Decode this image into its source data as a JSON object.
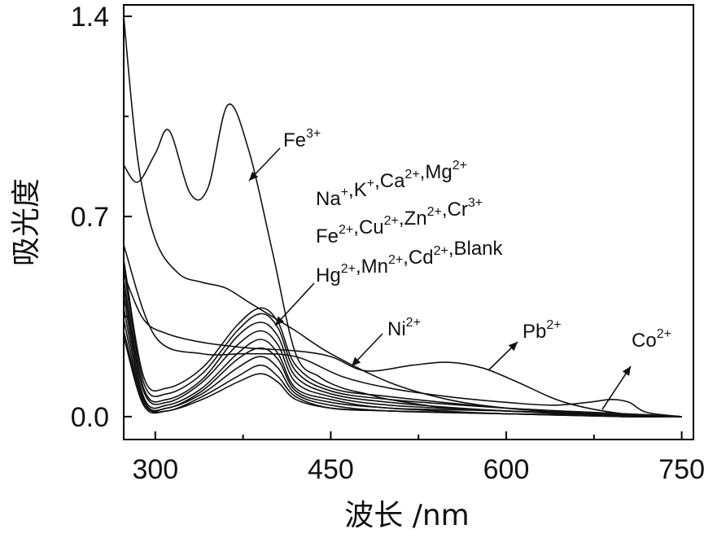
{
  "chart_data": {
    "type": "line",
    "xlabel": "波长 /nm",
    "ylabel": "吸光度",
    "xlim": [
      273,
      760
    ],
    "ylim": [
      -0.08,
      1.44
    ],
    "xticks": [
      300,
      450,
      600,
      750
    ],
    "yticks": [
      0.0,
      0.7,
      1.4
    ],
    "xtick_labels": [
      "300",
      "450",
      "600",
      "750"
    ],
    "ytick_labels": [
      "0.0",
      "0.7",
      "1.4"
    ],
    "series": [
      {
        "x": [
          273,
          285,
          300,
          312,
          330,
          345,
          362,
          380,
          400,
          420,
          440,
          460,
          480,
          500,
          550,
          600,
          650,
          700,
          750
        ],
        "y": [
          0.88,
          0.82,
          0.92,
          1.0,
          0.78,
          0.8,
          1.09,
          0.93,
          0.58,
          0.22,
          0.14,
          0.1,
          0.08,
          0.06,
          0.03,
          0.02,
          0.01,
          0.005,
          0.0
        ]
      },
      {
        "x": [
          273,
          285,
          300,
          320,
          340,
          360,
          380,
          400,
          420,
          450,
          500,
          550,
          600,
          650,
          700,
          750
        ],
        "y": [
          1.4,
          0.9,
          0.62,
          0.5,
          0.47,
          0.45,
          0.4,
          0.35,
          0.3,
          0.22,
          0.12,
          0.06,
          0.03,
          0.015,
          0.005,
          0.0
        ]
      },
      {
        "x": [
          273,
          290,
          310,
          340,
          380,
          420,
          450,
          480,
          520,
          550,
          580,
          610,
          650,
          700,
          750
        ],
        "y": [
          0.5,
          0.34,
          0.29,
          0.26,
          0.24,
          0.23,
          0.21,
          0.16,
          0.18,
          0.19,
          0.17,
          0.12,
          0.05,
          0.01,
          0.0
        ]
      },
      {
        "x": [
          273,
          300,
          340,
          380,
          420,
          460,
          500,
          550,
          600,
          640,
          670,
          690,
          705,
          720,
          750
        ],
        "y": [
          0.6,
          0.28,
          0.22,
          0.22,
          0.21,
          0.14,
          0.1,
          0.07,
          0.05,
          0.04,
          0.05,
          0.06,
          0.05,
          0.015,
          0.0
        ]
      },
      {
        "x": [
          273,
          290,
          310,
          340,
          370,
          390,
          405,
          420,
          450,
          500,
          600,
          700,
          750
        ],
        "y": [
          0.55,
          0.14,
          0.1,
          0.17,
          0.32,
          0.38,
          0.33,
          0.18,
          0.1,
          0.07,
          0.03,
          0.01,
          0.0
        ]
      },
      {
        "x": [
          273,
          290,
          310,
          340,
          370,
          390,
          405,
          420,
          450,
          500,
          600,
          700,
          750
        ],
        "y": [
          0.52,
          0.12,
          0.08,
          0.15,
          0.3,
          0.36,
          0.31,
          0.16,
          0.09,
          0.06,
          0.03,
          0.01,
          0.0
        ]
      },
      {
        "x": [
          273,
          290,
          310,
          340,
          370,
          390,
          405,
          420,
          450,
          500,
          600,
          700,
          750
        ],
        "y": [
          0.48,
          0.1,
          0.06,
          0.13,
          0.28,
          0.33,
          0.28,
          0.14,
          0.08,
          0.05,
          0.02,
          0.01,
          0.0
        ]
      },
      {
        "x": [
          273,
          290,
          310,
          340,
          370,
          390,
          405,
          420,
          450,
          500,
          600,
          700,
          750
        ],
        "y": [
          0.45,
          0.09,
          0.05,
          0.12,
          0.25,
          0.3,
          0.25,
          0.12,
          0.07,
          0.04,
          0.02,
          0.005,
          0.0
        ]
      },
      {
        "x": [
          273,
          290,
          310,
          340,
          370,
          390,
          405,
          420,
          450,
          500,
          600,
          700,
          750
        ],
        "y": [
          0.42,
          0.07,
          0.04,
          0.1,
          0.22,
          0.27,
          0.22,
          0.1,
          0.06,
          0.03,
          0.02,
          0.005,
          0.0
        ]
      },
      {
        "x": [
          273,
          290,
          310,
          340,
          370,
          390,
          405,
          420,
          450,
          500,
          600,
          700,
          750
        ],
        "y": [
          0.38,
          0.06,
          0.03,
          0.09,
          0.2,
          0.24,
          0.2,
          0.09,
          0.05,
          0.03,
          0.01,
          0.005,
          0.0
        ]
      },
      {
        "x": [
          273,
          290,
          310,
          340,
          370,
          390,
          405,
          420,
          450,
          500,
          600,
          700,
          750
        ],
        "y": [
          0.34,
          0.05,
          0.03,
          0.08,
          0.17,
          0.21,
          0.17,
          0.08,
          0.04,
          0.02,
          0.01,
          0.005,
          0.0
        ]
      },
      {
        "x": [
          273,
          290,
          310,
          340,
          370,
          390,
          405,
          420,
          450,
          500,
          600,
          700,
          750
        ],
        "y": [
          0.3,
          0.05,
          0.02,
          0.07,
          0.14,
          0.18,
          0.14,
          0.07,
          0.03,
          0.02,
          0.01,
          0.0,
          0.0
        ]
      },
      {
        "x": [
          273,
          290,
          310,
          340,
          370,
          390,
          405,
          420,
          450,
          500,
          600,
          700,
          750
        ],
        "y": [
          0.28,
          0.04,
          0.02,
          0.06,
          0.12,
          0.15,
          0.12,
          0.06,
          0.03,
          0.02,
          0.01,
          0.0,
          0.0
        ]
      }
    ],
    "annotations": [
      {
        "id": "fe3",
        "base": "Fe",
        "sup": "3+"
      },
      {
        "id": "group1",
        "parts": [
          [
            "Na",
            "+"
          ],
          [
            "K",
            "+"
          ],
          [
            "Ca",
            "2+"
          ],
          [
            "Mg",
            "2+"
          ]
        ]
      },
      {
        "id": "group2",
        "parts": [
          [
            "Fe",
            "2+"
          ],
          [
            "Cu",
            "2+"
          ],
          [
            "Zn",
            "2+"
          ],
          [
            "Cr",
            "3+"
          ]
        ]
      },
      {
        "id": "group3",
        "parts": [
          [
            "Hg",
            "2+"
          ],
          [
            "Mn",
            "2+"
          ],
          [
            "Cd",
            "2+"
          ],
          [
            "Blank",
            ""
          ]
        ]
      },
      {
        "id": "ni",
        "base": "Ni",
        "sup": "2+"
      },
      {
        "id": "pb",
        "base": "Pb",
        "sup": "2+"
      },
      {
        "id": "co",
        "base": "Co",
        "sup": "2+"
      }
    ],
    "grid": false,
    "legend": "none"
  }
}
